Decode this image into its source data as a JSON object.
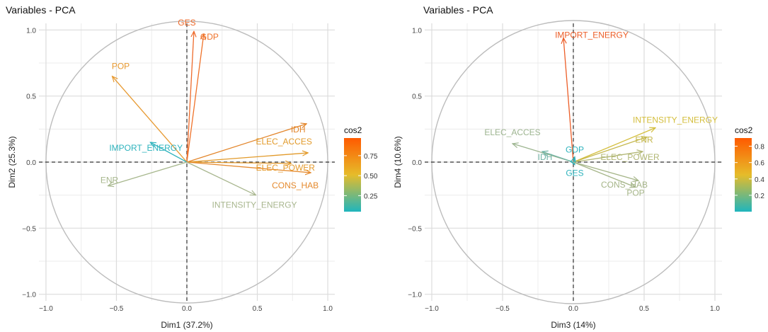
{
  "colorbar_gradient": [
    "#1fb5bd",
    "#e6bc2a",
    "#ff5a00"
  ],
  "chart_data": [
    {
      "type": "scatter",
      "subtype": "pca-variable-correlation-circle",
      "title": "Variables - PCA",
      "xlabel": "Dim1 (37.2%)",
      "ylabel": "Dim2 (25.3%)",
      "xlim": [
        -1.05,
        1.05
      ],
      "ylim": [
        -1.05,
        1.05
      ],
      "xticks": [
        -1.0,
        -0.5,
        0.0,
        0.5,
        1.0
      ],
      "yticks": [
        -1.0,
        -0.5,
        0.0,
        0.5,
        1.0
      ],
      "xtick_labels": [
        "−1.0",
        "−0.5",
        "0.0",
        "0.5",
        "1.0"
      ],
      "ytick_labels": [
        "−1.0",
        "−0.5",
        "0.0",
        "0.5",
        "1.0"
      ],
      "grid": true,
      "unit_circle": true,
      "legend": {
        "title": "cos2",
        "placement": "right",
        "range": [
          0.05,
          0.97
        ],
        "ticks": [
          0.25,
          0.5,
          0.75
        ],
        "tick_labels": [
          "0.25",
          "0.50",
          "0.75"
        ]
      },
      "variables": [
        {
          "name": "GES",
          "x": 0.05,
          "y": 0.99,
          "cos2": 0.97,
          "color": "#ee6b2c"
        },
        {
          "name": "GDP",
          "x": 0.12,
          "y": 0.97,
          "cos2": 0.94,
          "color": "#ef722a"
        },
        {
          "name": "POP",
          "x": -0.53,
          "y": 0.65,
          "cos2": 0.64,
          "color": "#e79930"
        },
        {
          "name": "IDH",
          "x": 0.85,
          "y": 0.29,
          "cos2": 0.82,
          "color": "#e3852a"
        },
        {
          "name": "ELEC_ACCES",
          "x": 0.86,
          "y": 0.07,
          "cos2": 0.72,
          "color": "#e29a2a"
        },
        {
          "name": "ELEC_POWER",
          "x": 0.74,
          "y": -0.01,
          "cos2": 0.56,
          "color": "#e59a2b"
        },
        {
          "name": "CONS_HAB",
          "x": 0.88,
          "y": -0.08,
          "cos2": 0.76,
          "color": "#e58a2e"
        },
        {
          "name": "IMPORT_ENERGY",
          "x": -0.26,
          "y": 0.15,
          "cos2": 0.09,
          "color": "#2eb3bd"
        },
        {
          "name": "ENR",
          "x": -0.56,
          "y": -0.18,
          "cos2": 0.34,
          "color": "#a7b78d"
        },
        {
          "name": "INTENSITY_ENERGY",
          "x": 0.49,
          "y": -0.25,
          "cos2": 0.3,
          "color": "#a8b68e"
        }
      ]
    },
    {
      "type": "scatter",
      "subtype": "pca-variable-correlation-circle",
      "title": "Variables - PCA",
      "xlabel": "Dim3 (14%)",
      "ylabel": "Dim4 (10.6%)",
      "xlim": [
        -1.05,
        1.05
      ],
      "ylim": [
        -1.05,
        1.05
      ],
      "xticks": [
        -1.0,
        -0.5,
        0.0,
        0.5,
        1.0
      ],
      "yticks": [
        -1.0,
        -0.5,
        0.0,
        0.5,
        1.0
      ],
      "xtick_labels": [
        "−1.0",
        "−0.5",
        "0.0",
        "0.5",
        "1.0"
      ],
      "ytick_labels": [
        "−1.0",
        "−0.5",
        "0.0",
        "0.5",
        "1.0"
      ],
      "grid": true,
      "unit_circle": true,
      "legend": {
        "title": "cos2",
        "placement": "right",
        "range": [
          0.0,
          0.9
        ],
        "ticks": [
          0.2,
          0.4,
          0.6,
          0.8
        ],
        "tick_labels": [
          "0.2",
          "0.4",
          "0.6",
          "0.8"
        ]
      },
      "variables": [
        {
          "name": "IMPORT_ENERGY",
          "x": -0.07,
          "y": 0.94,
          "cos2": 0.89,
          "color": "#ec5e28"
        },
        {
          "name": "INTENSITY_ENERGY",
          "x": 0.58,
          "y": 0.26,
          "cos2": 0.4,
          "color": "#d4be3c"
        },
        {
          "name": "ENR",
          "x": 0.52,
          "y": 0.19,
          "cos2": 0.31,
          "color": "#c5b84e"
        },
        {
          "name": "ELEC_POWER",
          "x": 0.49,
          "y": 0.08,
          "cos2": 0.25,
          "color": "#b2b775"
        },
        {
          "name": "ELEC_ACCES",
          "x": -0.43,
          "y": 0.14,
          "cos2": 0.2,
          "color": "#9db590"
        },
        {
          "name": "IDH",
          "x": -0.22,
          "y": 0.08,
          "cos2": 0.06,
          "color": "#6fb3a4"
        },
        {
          "name": "GDP",
          "x": 0.01,
          "y": 0.04,
          "cos2": 0.01,
          "color": "#2fb3bd"
        },
        {
          "name": "GES",
          "x": 0.01,
          "y": -0.02,
          "cos2": 0.01,
          "color": "#2fb3bd"
        },
        {
          "name": "CONS_HAB",
          "x": 0.46,
          "y": -0.14,
          "cos2": 0.23,
          "color": "#a5b588"
        },
        {
          "name": "POP",
          "x": 0.44,
          "y": -0.19,
          "cos2": 0.23,
          "color": "#a5b588"
        }
      ]
    }
  ]
}
